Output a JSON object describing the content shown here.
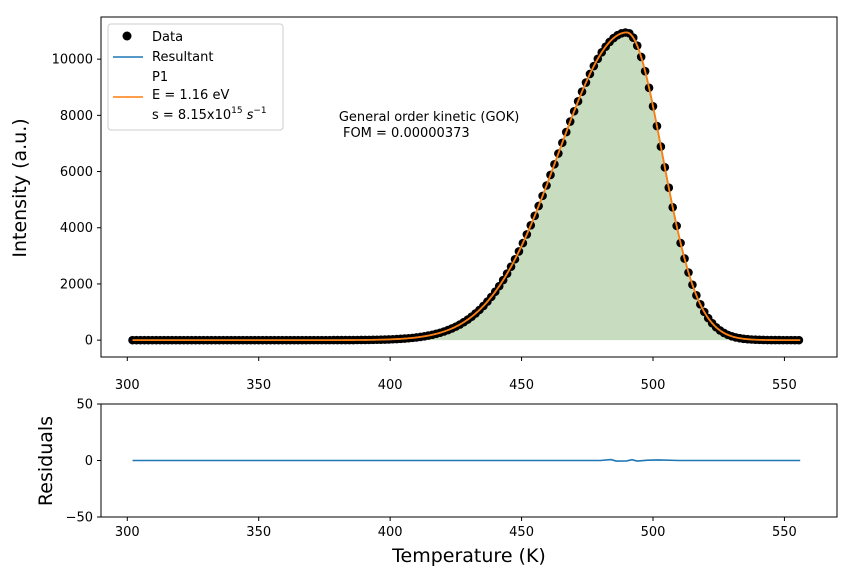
{
  "chart_data": [
    {
      "type": "scatter",
      "ylabel": "Intensity  (a.u.)",
      "xlim": [
        290,
        570
      ],
      "ylim": [
        -600,
        11500
      ],
      "xticks": [
        300,
        350,
        400,
        450,
        500,
        550
      ],
      "yticks": [
        0,
        2000,
        4000,
        6000,
        8000,
        10000
      ],
      "legend_position": "top-left",
      "legend": {
        "data": "Data",
        "resultant": "Resultant",
        "p1_name": "P1",
        "p1_energy": "E = 1.16 eV",
        "p1_s_prefix": "s = 8.15x10",
        "p1_s_exp": "15",
        "p1_s_unit": "s",
        "p1_s_unit_exp": "−1"
      },
      "annotation": {
        "line1": "General order kinetic (GOK)",
        "line2": " FOM = 0.00000373",
        "x": 390,
        "y": 7800
      },
      "peak": {
        "temperature": 490,
        "intensity": 10950,
        "x_start": 302,
        "x_end": 556,
        "step": 1.5
      },
      "colors": {
        "data": "#000000",
        "resultant": "#1f77b4",
        "p1": "#ff7f0e",
        "fill": "#c8ddc0"
      }
    },
    {
      "type": "line",
      "xlabel": "Temperature (K)",
      "ylabel": "Residuals",
      "xlim": [
        290,
        570
      ],
      "ylim": [
        -50,
        50
      ],
      "xticks": [
        300,
        350,
        400,
        450,
        500,
        550
      ],
      "yticks": [
        -50,
        0,
        50
      ],
      "yticklabels": [
        "−50",
        "0",
        "50"
      ],
      "residual_points": [
        [
          302,
          0
        ],
        [
          480,
          0
        ],
        [
          484,
          0.8
        ],
        [
          486,
          -0.5
        ],
        [
          490,
          -0.4
        ],
        [
          492,
          0.7
        ],
        [
          494,
          -0.5
        ],
        [
          498,
          0.3
        ],
        [
          502,
          0.5
        ],
        [
          510,
          0
        ],
        [
          556,
          0
        ]
      ],
      "colors": {
        "line": "#1f77b4"
      }
    }
  ]
}
